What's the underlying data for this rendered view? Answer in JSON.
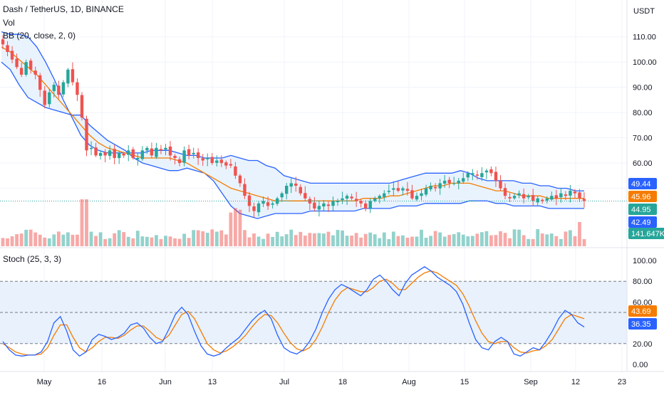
{
  "header": {
    "symbol_line": "Dash / TetherUS, 1D, BINANCE",
    "vol_label": "Vol",
    "bb_label": "BB (20, close, 2, 0)",
    "stoch_label": "Stoch (25, 3, 3)",
    "currency": "USDT"
  },
  "colors": {
    "up": "#26a69a",
    "down": "#ef5350",
    "bb_band": "#2962ff",
    "bb_basis": "#f57c00",
    "bb_fill": "#e3f0fd",
    "stoch_k": "#2962ff",
    "stoch_d": "#f57c00",
    "stoch_fill": "#e8f1fc",
    "grid": "#f0f3fa",
    "text": "#131722"
  },
  "price_axis": {
    "ticks": [
      "110.00",
      "100.00",
      "90.00",
      "80.00",
      "70.00",
      "60.00"
    ],
    "tags": [
      {
        "label": "49.44",
        "value": 49.44,
        "color": "#2962ff"
      },
      {
        "label": "45.96",
        "value": 45.96,
        "color": "#f57c00"
      },
      {
        "label": "44.95",
        "value": 44.95,
        "color": "#26a69a"
      },
      {
        "label": "42.49",
        "value": 42.49,
        "color": "#2962ff"
      },
      {
        "label": "141.647K",
        "value": null,
        "color": "#26a69a"
      }
    ]
  },
  "stoch_axis": {
    "ticks": [
      "100.00",
      "80.00",
      "60.00",
      "40.00",
      "20.00",
      "0.00"
    ],
    "tags": [
      {
        "label": "43.69",
        "value": 43.69,
        "color": "#f57c00"
      },
      {
        "label": "36.35",
        "value": 36.35,
        "color": "#2962ff"
      }
    ]
  },
  "time_axis": {
    "labels": [
      "May",
      "16",
      "Jun",
      "13",
      "Jul",
      "18",
      "Aug",
      "15",
      "Sep",
      "12",
      "23"
    ]
  },
  "chart_data": {
    "type": "line",
    "price_range": [
      40,
      115
    ],
    "stoch_range": [
      0,
      100
    ],
    "last_price": 44.95,
    "closes": [
      107,
      104,
      101,
      98,
      95,
      100,
      97,
      95,
      89,
      83,
      88,
      91,
      87,
      92,
      97,
      92,
      87,
      78,
      65,
      66,
      63,
      64,
      63,
      65,
      62,
      64,
      63,
      65,
      62,
      62,
      65,
      66,
      63,
      66,
      65,
      66,
      63,
      62,
      60,
      65,
      63,
      64,
      62,
      61,
      62,
      60,
      61,
      60,
      59,
      59,
      55,
      52,
      47,
      43,
      41,
      44,
      45,
      43,
      44,
      46,
      48,
      51,
      52,
      51,
      48,
      46,
      44,
      42,
      43,
      44,
      43,
      45,
      45,
      46,
      47,
      46,
      45,
      44,
      42,
      45,
      46,
      47,
      48,
      49,
      50,
      49,
      50,
      49,
      46,
      47,
      48,
      50,
      51,
      50,
      52,
      53,
      52,
      52,
      53,
      54,
      56,
      56,
      55,
      56,
      57,
      56,
      53,
      50,
      47,
      46,
      47,
      48,
      46,
      47,
      45,
      46,
      45,
      46,
      47,
      46,
      48,
      47,
      49,
      48,
      46,
      45
    ],
    "bb_upper": [
      112,
      111,
      111,
      110,
      106,
      100,
      93,
      85,
      78,
      71,
      67,
      65,
      64,
      64,
      64,
      64,
      64,
      65,
      65,
      65,
      64,
      63,
      63,
      62,
      62,
      62,
      63,
      62,
      61,
      61,
      59,
      58,
      55,
      54,
      53,
      52,
      52,
      52,
      52,
      52,
      52,
      52,
      52,
      52,
      52,
      53,
      54,
      55,
      56,
      56,
      56,
      56,
      57,
      56,
      54,
      53,
      53,
      53,
      53,
      52,
      52,
      51,
      51,
      50,
      50,
      49,
      49
    ],
    "bb_basis": [
      106,
      104,
      101,
      98,
      95,
      91,
      87,
      83,
      79,
      75,
      71,
      68,
      66,
      65,
      64,
      63,
      62,
      62,
      62,
      62,
      61,
      60,
      58,
      56,
      54,
      52,
      50,
      49,
      48,
      47,
      46,
      45,
      45,
      45,
      45,
      45,
      45,
      45,
      45,
      45,
      45,
      46,
      46,
      46,
      47,
      47,
      48,
      49,
      50,
      51,
      51,
      52,
      52,
      52,
      51,
      50,
      49,
      49,
      48,
      47,
      47,
      47,
      46,
      46,
      46,
      46,
      46
    ],
    "bb_lower": [
      100,
      97,
      91,
      86,
      84,
      82,
      81,
      80,
      79,
      79,
      75,
      72,
      69,
      67,
      65,
      62,
      60,
      59,
      58,
      57,
      57,
      58,
      57,
      56,
      53,
      48,
      43,
      40,
      39,
      38,
      39,
      40,
      40,
      40,
      40,
      41,
      41,
      41,
      41,
      41,
      41,
      42,
      42,
      42,
      42,
      43,
      43,
      43,
      44,
      44,
      44,
      44,
      44,
      45,
      45,
      45,
      44,
      44,
      43,
      43,
      43,
      43,
      42,
      42,
      42,
      42,
      42
    ],
    "stoch_k": [
      22,
      14,
      9,
      8,
      9,
      9,
      12,
      22,
      40,
      46,
      32,
      14,
      8,
      12,
      24,
      29,
      27,
      24,
      26,
      30,
      38,
      40,
      35,
      26,
      20,
      22,
      34,
      48,
      55,
      48,
      32,
      18,
      10,
      8,
      10,
      16,
      21,
      26,
      34,
      42,
      48,
      52,
      44,
      28,
      16,
      12,
      10,
      14,
      22,
      34,
      50,
      63,
      72,
      77,
      74,
      70,
      66,
      72,
      82,
      86,
      80,
      72,
      66,
      78,
      86,
      90,
      94,
      90,
      84,
      80,
      76,
      70,
      58,
      40,
      24,
      16,
      14,
      22,
      26,
      22,
      10,
      8,
      12,
      16,
      14,
      22,
      32,
      44,
      52,
      48,
      40,
      36
    ],
    "stoch_d": [
      20,
      16,
      12,
      10,
      9,
      9,
      10,
      16,
      28,
      38,
      38,
      26,
      16,
      12,
      16,
      22,
      26,
      26,
      25,
      28,
      33,
      37,
      37,
      32,
      26,
      23,
      28,
      38,
      48,
      51,
      44,
      32,
      20,
      14,
      11,
      13,
      17,
      22,
      28,
      36,
      43,
      48,
      47,
      40,
      30,
      21,
      15,
      13,
      16,
      24,
      36,
      50,
      62,
      70,
      74,
      72,
      70,
      70,
      74,
      80,
      82,
      78,
      72,
      72,
      78,
      84,
      88,
      90,
      88,
      84,
      80,
      76,
      68,
      56,
      42,
      30,
      22,
      20,
      22,
      22,
      16,
      12,
      11,
      13,
      14,
      18,
      24,
      34,
      44,
      48,
      46,
      44
    ]
  }
}
